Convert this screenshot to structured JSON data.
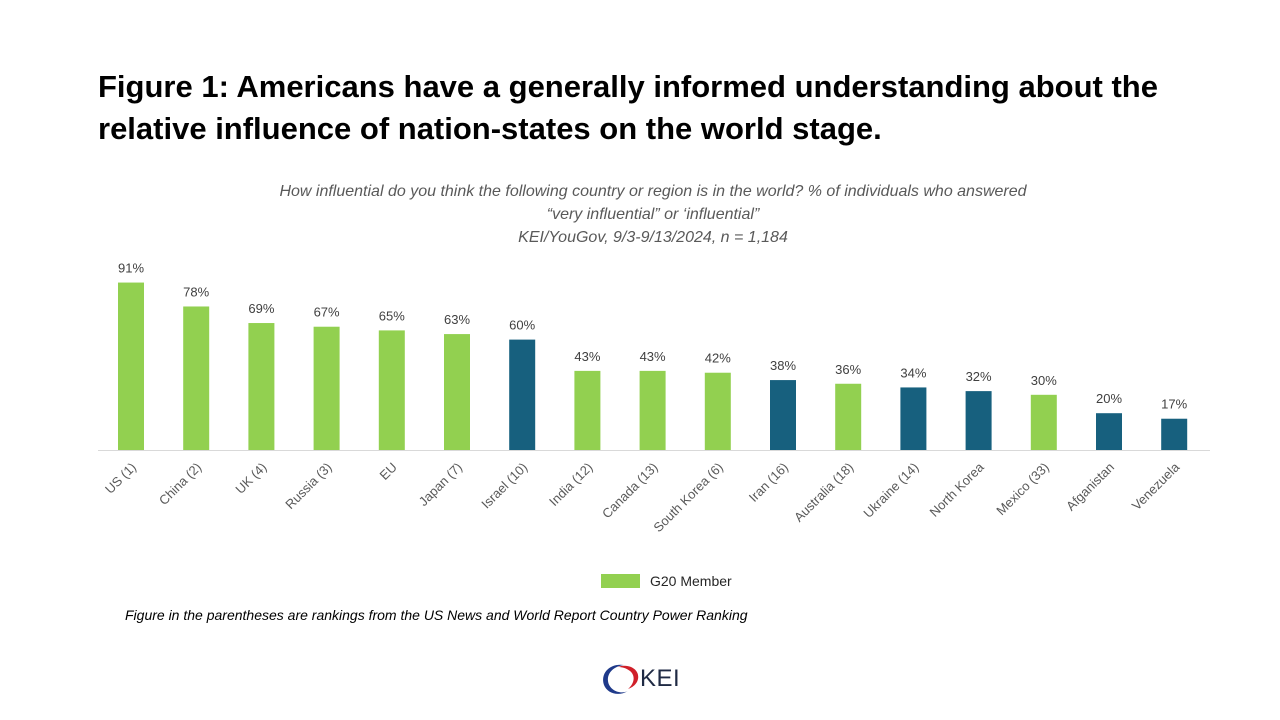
{
  "title": "Figure 1: Americans have a generally informed understanding about the relative influence of nation-states on the world stage.",
  "subtitle_lines": [
    "How influential do you think the following country or region is in the world?  % of individuals who answered",
    "“very influential” or ‘influential”",
    "KEI/YouGov, 9/3-9/13/2024, n = 1,184"
  ],
  "legend_label": "G20 Member",
  "footnote": "Figure in the parentheses are rankings from the US News and World Report Country Power Ranking",
  "logo_text": "KEI",
  "colors": {
    "g20": "#92d050",
    "non_g20": "#17607e"
  },
  "chart_data": {
    "type": "bar",
    "categories": [
      "US (1)",
      "China (2)",
      "UK (4)",
      "Russia (3)",
      "EU",
      "Japan (7)",
      "Israel (10)",
      "India (12)",
      "Canada (13)",
      "South Korea (6)",
      "Iran (16)",
      "Australia (18)",
      "Ukraine (14)",
      "North Korea",
      "Mexico (33)",
      "Afganistan",
      "Venezuela"
    ],
    "values": [
      91,
      78,
      69,
      67,
      65,
      63,
      60,
      43,
      43,
      42,
      38,
      36,
      34,
      32,
      30,
      20,
      17
    ],
    "data_labels": [
      "91%",
      "78%",
      "69%",
      "67%",
      "65%",
      "63%",
      "60%",
      "43%",
      "43%",
      "42%",
      "38%",
      "36%",
      "34%",
      "32%",
      "30%",
      "20%",
      "17%"
    ],
    "g20_member": [
      true,
      true,
      true,
      true,
      true,
      true,
      false,
      true,
      true,
      true,
      false,
      true,
      false,
      false,
      true,
      false,
      false
    ],
    "ylim": [
      0,
      100
    ],
    "grid": false,
    "legend_position": "bottom"
  }
}
